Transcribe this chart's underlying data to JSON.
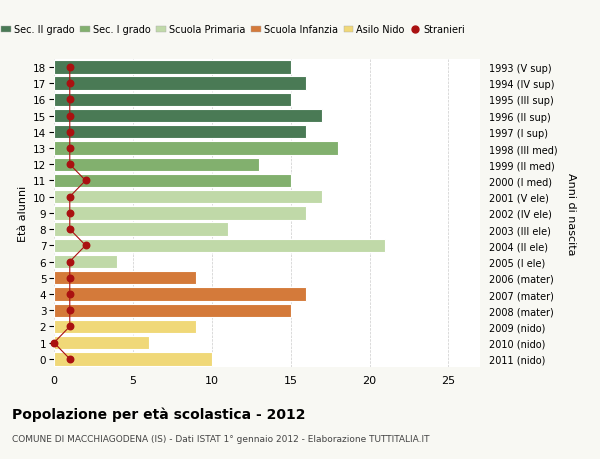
{
  "ages": [
    18,
    17,
    16,
    15,
    14,
    13,
    12,
    11,
    10,
    9,
    8,
    7,
    6,
    5,
    4,
    3,
    2,
    1,
    0
  ],
  "years": [
    "1993 (V sup)",
    "1994 (IV sup)",
    "1995 (III sup)",
    "1996 (II sup)",
    "1997 (I sup)",
    "1998 (III med)",
    "1999 (II med)",
    "2000 (I med)",
    "2001 (V ele)",
    "2002 (IV ele)",
    "2003 (III ele)",
    "2004 (II ele)",
    "2005 (I ele)",
    "2006 (mater)",
    "2007 (mater)",
    "2008 (mater)",
    "2009 (nido)",
    "2010 (nido)",
    "2011 (nido)"
  ],
  "bar_values": [
    15,
    16,
    15,
    17,
    16,
    18,
    13,
    15,
    17,
    16,
    11,
    21,
    4,
    9,
    16,
    15,
    9,
    6,
    10
  ],
  "bar_colors": [
    "#4a7a55",
    "#4a7a55",
    "#4a7a55",
    "#4a7a55",
    "#4a7a55",
    "#82b06e",
    "#82b06e",
    "#82b06e",
    "#c0d9a8",
    "#c0d9a8",
    "#c0d9a8",
    "#c0d9a8",
    "#c0d9a8",
    "#d47a3a",
    "#d47a3a",
    "#d47a3a",
    "#f0d878",
    "#f0d878",
    "#f0d878"
  ],
  "stranieri_values": [
    1,
    1,
    1,
    1,
    1,
    1,
    1,
    2,
    1,
    1,
    1,
    2,
    1,
    1,
    1,
    1,
    1,
    0,
    1
  ],
  "legend_labels": [
    "Sec. II grado",
    "Sec. I grado",
    "Scuola Primaria",
    "Scuola Infanzia",
    "Asilo Nido",
    "Stranieri"
  ],
  "legend_colors": [
    "#4a7a55",
    "#82b06e",
    "#c0d9a8",
    "#d47a3a",
    "#f0d878",
    "#aa1111"
  ],
  "ylabel_left": "Età alunni",
  "ylabel_right": "Anni di nascita",
  "xlim": [
    0,
    27
  ],
  "xticks": [
    0,
    5,
    10,
    15,
    20,
    25
  ],
  "title": "Popolazione per età scolastica - 2012",
  "subtitle": "COMUNE DI MACCHIAGODENA (IS) - Dati ISTAT 1° gennaio 2012 - Elaborazione TUTTITALIA.IT",
  "bg_color": "#f8f8f3",
  "plot_bg": "#ffffff",
  "bar_height": 0.82,
  "grid_color": "#cccccc"
}
